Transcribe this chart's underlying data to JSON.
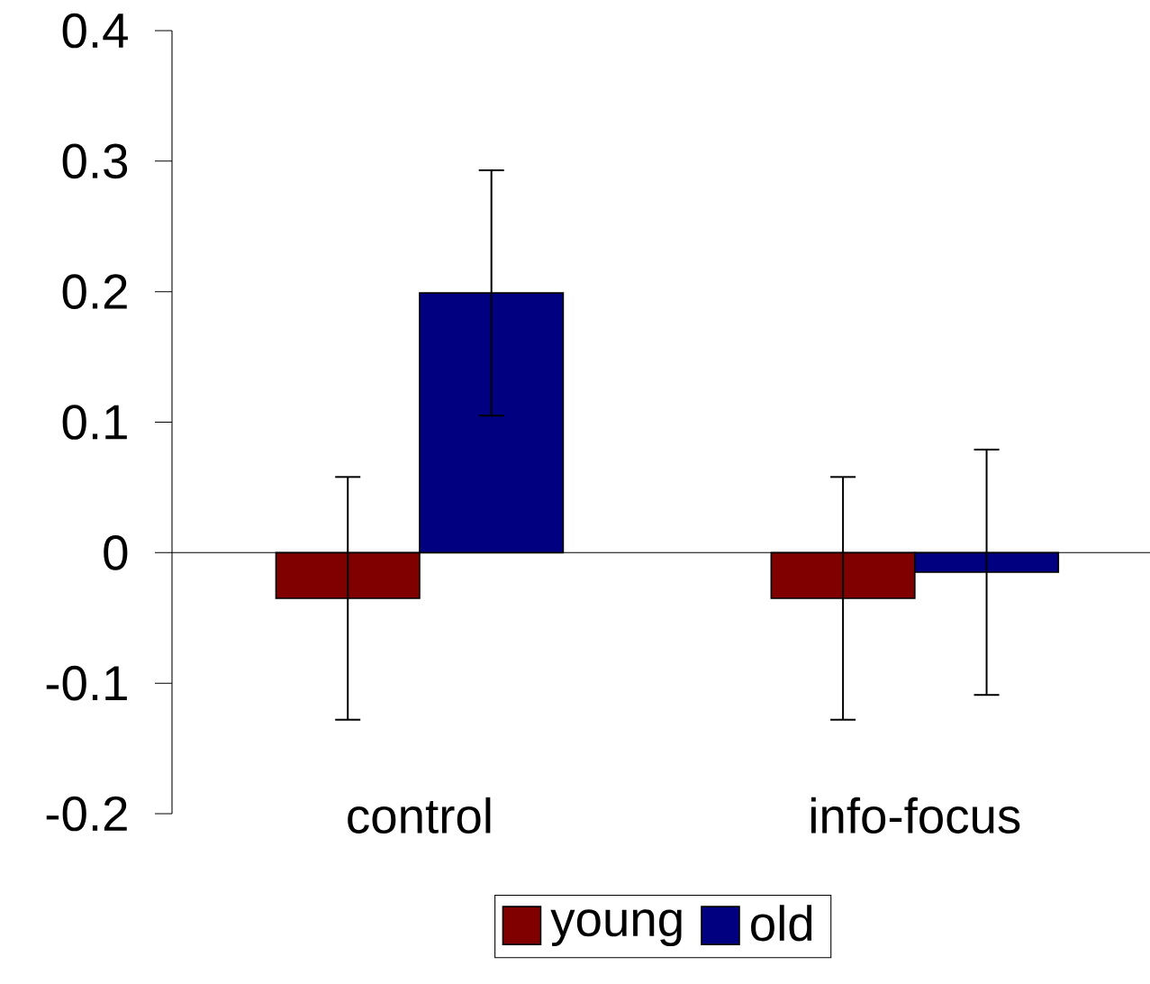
{
  "chart_data": {
    "type": "bar",
    "categories": [
      "control",
      "info-focus"
    ],
    "series": [
      {
        "name": "young",
        "color": "#800000",
        "values": [
          -0.035,
          -0.035
        ],
        "errors": [
          0.093,
          0.093
        ]
      },
      {
        "name": "old",
        "color": "#000080",
        "values": [
          0.199,
          -0.015
        ],
        "errors": [
          0.094,
          0.094
        ]
      }
    ],
    "ylim": [
      -0.2,
      0.4
    ],
    "yticks": [
      -0.2,
      -0.1,
      0,
      0.1,
      0.2,
      0.3,
      0.4
    ],
    "legend": "bottom"
  }
}
